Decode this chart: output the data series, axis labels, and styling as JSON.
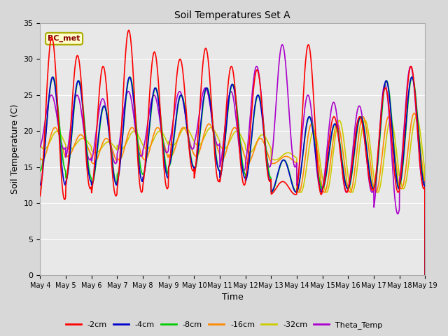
{
  "title": "Soil Temperatures Set A",
  "xlabel": "Time",
  "ylabel": "Soil Temperature (C)",
  "ylim": [
    0,
    35
  ],
  "yticks": [
    0,
    5,
    10,
    15,
    20,
    25,
    30,
    35
  ],
  "x_tick_labels": [
    "May 4",
    "May 5",
    "May 6",
    "May 7",
    "May 8",
    "May 9",
    "May 10",
    "May 11",
    "May 12",
    "May 13",
    "May 14",
    "May 15",
    "May 16",
    "May 17",
    "May 18",
    "May 19"
  ],
  "series_colors": {
    "-2cm": "#ff0000",
    "-4cm": "#0000cc",
    "-8cm": "#00cc00",
    "-16cm": "#ff8800",
    "-32cm": "#cccc00",
    "Theta_Temp": "#aa00cc"
  },
  "annotation_text": "BC_met",
  "annotation_color": "#880000",
  "annotation_bg": "#ffffcc",
  "annotation_edge": "#aaaa00",
  "bg_color": "#d8d8d8",
  "plot_bg_upper": "#e8e8e8",
  "plot_bg_lower": "#d0d0d0",
  "grid_color": "#ffffff",
  "linewidth": 1.2,
  "figsize": [
    6.4,
    4.8
  ],
  "dpi": 100
}
